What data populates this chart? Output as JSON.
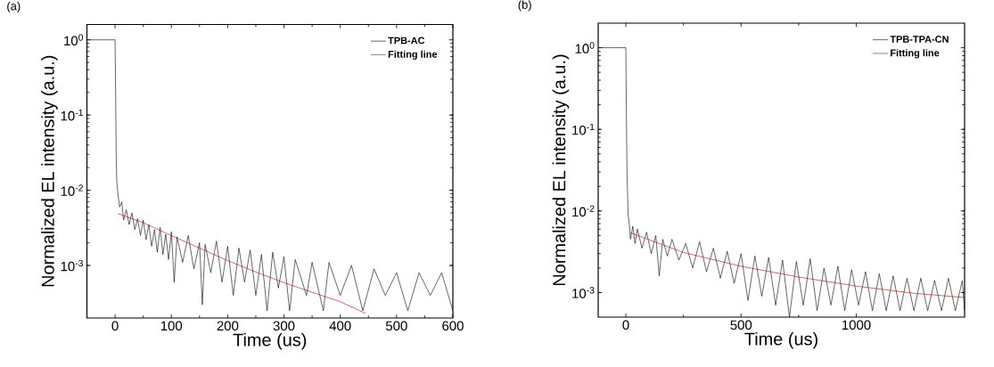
{
  "chart_data": [
    {
      "type": "line",
      "title": "(a)",
      "xlabel": "Time (us)",
      "ylabel": "Normalized EL intensity (a.u.)",
      "log": "y",
      "legend": "top right",
      "marker": "none",
      "line_style": "solid",
      "xlim": [
        -50,
        600
      ],
      "xticks": [
        0,
        100,
        200,
        300,
        400,
        500,
        600
      ],
      "ylim": [
        0.0002,
        1.6
      ],
      "yticks": [
        {
          "value": 0.001,
          "label": "10$^{-3}$"
        },
        {
          "value": 0.01,
          "label": "10$^{-2}$"
        },
        {
          "value": 0.1,
          "label": "10$^{-1}$"
        },
        {
          "value": 1,
          "label": "10$^{0}$"
        }
      ],
      "series": [
        {
          "name": "TPB-AC",
          "color": "#000000",
          "x": [
            -50,
            0,
            1,
            2,
            3,
            5,
            8,
            12,
            15,
            20,
            25,
            30,
            35,
            40,
            45,
            50,
            55,
            60,
            65,
            70,
            75,
            80,
            85,
            90,
            95,
            100,
            105,
            110,
            120,
            130,
            140,
            150,
            155,
            160,
            170,
            180,
            190,
            200,
            210,
            220,
            230,
            240,
            250,
            260,
            270,
            280,
            290,
            300,
            310,
            320,
            340,
            350,
            370,
            380,
            400,
            420,
            440,
            460,
            480,
            500,
            520,
            540,
            560,
            580,
            600
          ],
          "values": [
            1,
            1,
            0.2,
            0.03,
            0.013,
            0.009,
            0.006,
            0.007,
            0.004,
            0.0055,
            0.0035,
            0.005,
            0.003,
            0.0042,
            0.0025,
            0.004,
            0.0022,
            0.0035,
            0.0018,
            0.003,
            0.0015,
            0.0032,
            0.0014,
            0.0026,
            0.0012,
            0.0028,
            0.0006,
            0.0024,
            0.0011,
            0.0025,
            0.0009,
            0.002,
            0.0003,
            0.0019,
            0.0008,
            0.0021,
            0.0006,
            0.0018,
            0.0004,
            0.0017,
            0.0006,
            0.0016,
            0.0004,
            0.0014,
            0.00025,
            0.0015,
            0.0005,
            0.0013,
            0.00025,
            0.0012,
            0.0004,
            0.0011,
            0.00025,
            0.0011,
            0.0004,
            0.001,
            0.00025,
            0.0009,
            0.0004,
            0.0008,
            0.00025,
            0.0008,
            0.0004,
            0.0008,
            0.00025
          ]
        },
        {
          "name": "Fitting line",
          "color": "#c00000",
          "x": [
            5,
            50,
            100,
            150,
            200,
            250,
            300,
            350,
            400,
            445
          ],
          "values": [
            0.0049,
            0.0037,
            0.0025,
            0.0017,
            0.00116,
            0.00082,
            0.00059,
            0.00044,
            0.00033,
            0.00023
          ]
        }
      ]
    },
    {
      "type": "line",
      "title": "(b)",
      "xlabel": "Time (us)",
      "ylabel": "Normalized EL intensity (a.u.)",
      "log": "y",
      "legend": "top right",
      "marker": "none",
      "line_style": "solid",
      "xlim": [
        -120,
        1470
      ],
      "xticks": [
        0,
        500,
        1000
      ],
      "ylim": [
        0.0005,
        2
      ],
      "yticks": [
        {
          "value": 0.001,
          "label": "10$^{-3}$"
        },
        {
          "value": 0.01,
          "label": "10$^{-2}$"
        },
        {
          "value": 0.1,
          "label": "10$^{-1}$"
        },
        {
          "value": 1,
          "label": "10$^{0}$"
        }
      ],
      "series": [
        {
          "name": "TPB-TPA-CN",
          "color": "#000000",
          "x": [
            -120,
            0,
            2,
            5,
            10,
            15,
            20,
            30,
            40,
            50,
            70,
            90,
            110,
            130,
            145,
            160,
            180,
            200,
            230,
            260,
            290,
            320,
            350,
            380,
            410,
            440,
            470,
            500,
            530,
            560,
            590,
            620,
            650,
            680,
            710,
            740,
            770,
            800,
            830,
            860,
            890,
            920,
            950,
            980,
            1010,
            1040,
            1070,
            1100,
            1130,
            1160,
            1190,
            1220,
            1250,
            1280,
            1310,
            1340,
            1370,
            1400,
            1430,
            1460,
            1470
          ],
          "values": [
            1,
            1,
            0.2,
            0.03,
            0.009,
            0.007,
            0.0045,
            0.0065,
            0.004,
            0.006,
            0.0035,
            0.0055,
            0.003,
            0.005,
            0.0016,
            0.0045,
            0.0028,
            0.0045,
            0.0025,
            0.004,
            0.002,
            0.0042,
            0.0018,
            0.0035,
            0.0015,
            0.0032,
            0.0013,
            0.003,
            0.0008,
            0.0028,
            0.0009,
            0.0027,
            0.0007,
            0.0025,
            0.0005,
            0.0024,
            0.0007,
            0.0026,
            0.0006,
            0.002,
            0.0007,
            0.0021,
            0.0006,
            0.0019,
            0.0007,
            0.0018,
            0.0006,
            0.0017,
            0.0006,
            0.0016,
            0.0006,
            0.0015,
            0.0006,
            0.0015,
            0.0006,
            0.0014,
            0.0006,
            0.0015,
            0.0006,
            0.0014,
            0.0006
          ]
        },
        {
          "name": "Fitting line",
          "color": "#c00000",
          "x": [
            20,
            250,
            500,
            750,
            1000,
            1250,
            1470
          ],
          "values": [
            0.0054,
            0.0031,
            0.0021,
            0.00155,
            0.0012,
            0.00098,
            0.00087
          ]
        }
      ]
    }
  ]
}
